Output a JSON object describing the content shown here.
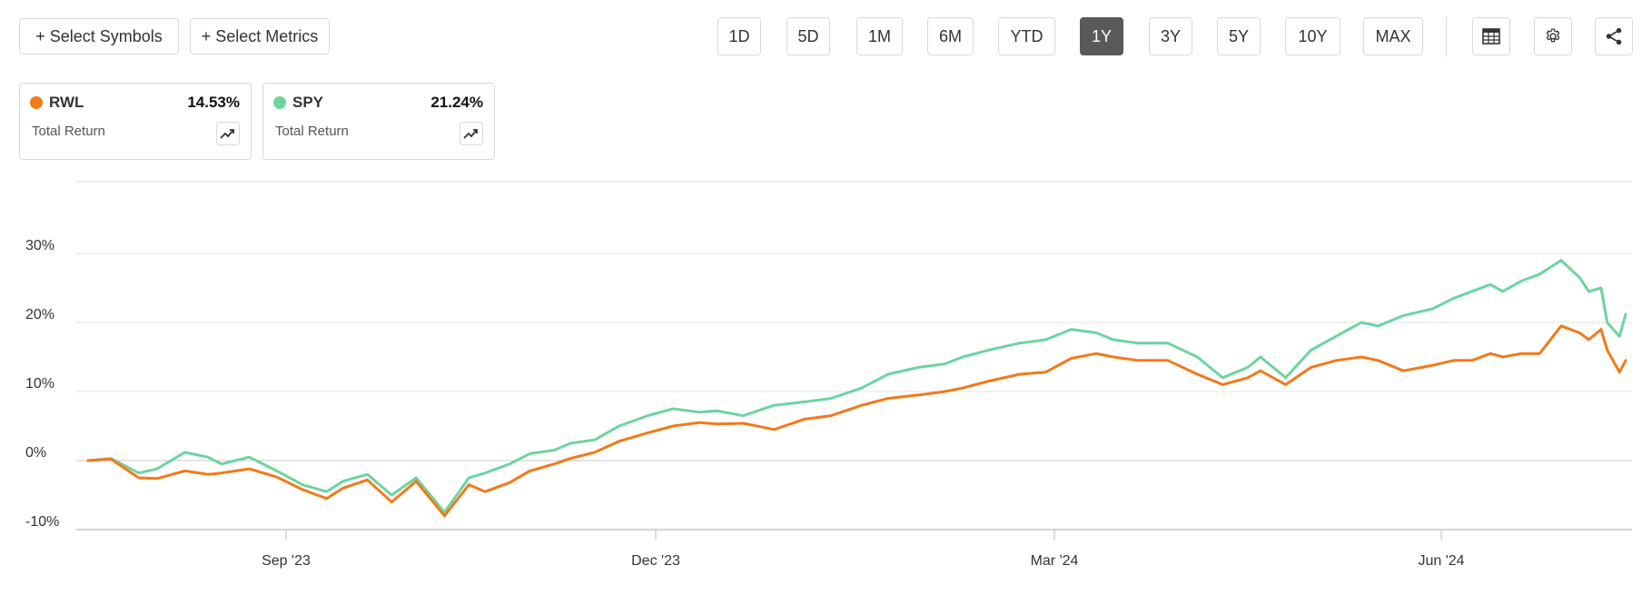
{
  "toolbar": {
    "select_symbols": "+ Select Symbols",
    "select_metrics": "+ Select Metrics",
    "ranges": [
      "1D",
      "5D",
      "1M",
      "6M",
      "YTD",
      "1Y",
      "3Y",
      "5Y",
      "10Y",
      "MAX"
    ],
    "active_range": "1Y",
    "icons": [
      "table-icon",
      "gear-icon",
      "share-icon"
    ]
  },
  "legend": [
    {
      "symbol": "RWL",
      "value": "14.53%",
      "label": "Total Return",
      "color": "#f27a1a"
    },
    {
      "symbol": "SPY",
      "value": "21.24%",
      "label": "Total Return",
      "color": "#6dd4a1"
    }
  ],
  "chart_data": {
    "type": "line",
    "title": "",
    "xlabel": "",
    "ylabel": "",
    "ylim": [
      -10,
      40
    ],
    "yticks": [
      30,
      20,
      10,
      0,
      -10
    ],
    "ytick_labels": [
      "30%",
      "20%",
      "10%",
      "0%",
      "-10%"
    ],
    "xticks": [
      "Sep '23",
      "Dec '23",
      "Mar '24",
      "Jun '24"
    ],
    "xtick_dates": [
      "2023-09-01",
      "2023-12-01",
      "2024-03-01",
      "2024-06-01"
    ],
    "grid": true,
    "series": [
      {
        "name": "RWL",
        "color": "#f27a1a",
        "x": [
          "2023-07-20",
          "2023-07-25",
          "2023-07-31",
          "2023-08-04",
          "2023-08-10",
          "2023-08-15",
          "2023-08-18",
          "2023-08-24",
          "2023-08-30",
          "2023-09-05",
          "2023-09-11",
          "2023-09-15",
          "2023-09-21",
          "2023-09-27",
          "2023-10-03",
          "2023-10-10",
          "2023-10-16",
          "2023-10-20",
          "2023-10-26",
          "2023-10-31",
          "2023-11-06",
          "2023-11-10",
          "2023-11-16",
          "2023-11-22",
          "2023-11-29",
          "2023-12-05",
          "2023-12-11",
          "2023-12-15",
          "2023-12-21",
          "2023-12-28",
          "2024-01-04",
          "2024-01-10",
          "2024-01-17",
          "2024-01-23",
          "2024-01-30",
          "2024-02-05",
          "2024-02-09",
          "2024-02-15",
          "2024-02-22",
          "2024-02-28",
          "2024-03-05",
          "2024-03-11",
          "2024-03-15",
          "2024-03-21",
          "2024-03-28",
          "2024-04-04",
          "2024-04-10",
          "2024-04-16",
          "2024-04-19",
          "2024-04-25",
          "2024-05-01",
          "2024-05-07",
          "2024-05-13",
          "2024-05-17",
          "2024-05-23",
          "2024-05-30",
          "2024-06-05",
          "2024-06-11",
          "2024-06-17",
          "2024-06-21",
          "2024-06-27",
          "2024-07-03",
          "2024-07-10",
          "2024-07-16",
          "2024-07-19",
          "2024-07-23",
          "2024-07-25",
          "2024-07-29",
          "2024-07-31"
        ],
        "values": [
          0.0,
          0.2,
          -2.5,
          -2.6,
          -1.5,
          -2.0,
          -1.8,
          -1.2,
          -2.4,
          -4.2,
          -5.5,
          -4.0,
          -2.8,
          -6.0,
          -3.0,
          -8.0,
          -3.5,
          -4.5,
          -3.2,
          -1.5,
          -0.5,
          0.3,
          1.2,
          2.8,
          4.0,
          5.0,
          5.5,
          5.3,
          5.4,
          4.5,
          6.0,
          6.5,
          8.0,
          9.0,
          9.5,
          10.0,
          10.5,
          11.5,
          12.5,
          12.8,
          14.8,
          15.5,
          15.0,
          14.5,
          14.5,
          12.5,
          11.0,
          12.0,
          13.0,
          11.0,
          13.5,
          14.5,
          15.0,
          14.5,
          13.0,
          13.8,
          14.5,
          14.5,
          15.5,
          15.0,
          15.5,
          15.5,
          19.5,
          18.5,
          17.5,
          19.0,
          16.0,
          12.8,
          14.5
        ]
      },
      {
        "name": "SPY",
        "color": "#6dd4a1",
        "x": [
          "2023-07-20",
          "2023-07-25",
          "2023-07-31",
          "2023-08-04",
          "2023-08-10",
          "2023-08-15",
          "2023-08-18",
          "2023-08-24",
          "2023-08-30",
          "2023-09-05",
          "2023-09-11",
          "2023-09-15",
          "2023-09-21",
          "2023-09-27",
          "2023-10-03",
          "2023-10-10",
          "2023-10-16",
          "2023-10-20",
          "2023-10-26",
          "2023-10-31",
          "2023-11-06",
          "2023-11-10",
          "2023-11-16",
          "2023-11-22",
          "2023-11-29",
          "2023-12-05",
          "2023-12-11",
          "2023-12-15",
          "2023-12-21",
          "2023-12-28",
          "2024-01-04",
          "2024-01-10",
          "2024-01-17",
          "2024-01-23",
          "2024-01-30",
          "2024-02-05",
          "2024-02-09",
          "2024-02-15",
          "2024-02-22",
          "2024-02-28",
          "2024-03-05",
          "2024-03-11",
          "2024-03-15",
          "2024-03-21",
          "2024-03-28",
          "2024-04-04",
          "2024-04-10",
          "2024-04-16",
          "2024-04-19",
          "2024-04-25",
          "2024-05-01",
          "2024-05-07",
          "2024-05-13",
          "2024-05-17",
          "2024-05-23",
          "2024-05-30",
          "2024-06-05",
          "2024-06-11",
          "2024-06-17",
          "2024-06-21",
          "2024-06-27",
          "2024-07-03",
          "2024-07-10",
          "2024-07-16",
          "2024-07-19",
          "2024-07-23",
          "2024-07-25",
          "2024-07-29",
          "2024-07-31"
        ],
        "values": [
          0.0,
          0.3,
          -1.8,
          -1.2,
          1.2,
          0.5,
          -0.5,
          0.5,
          -1.5,
          -3.5,
          -4.5,
          -3.0,
          -2.0,
          -5.0,
          -2.5,
          -7.5,
          -2.5,
          -1.8,
          -0.5,
          1.0,
          1.5,
          2.5,
          3.0,
          5.0,
          6.5,
          7.5,
          7.0,
          7.2,
          6.5,
          8.0,
          8.5,
          9.0,
          10.5,
          12.5,
          13.5,
          14.0,
          15.0,
          16.0,
          17.0,
          17.5,
          19.0,
          18.5,
          17.5,
          17.0,
          17.0,
          15.0,
          12.0,
          13.5,
          15.0,
          12.0,
          16.0,
          18.0,
          20.0,
          19.5,
          21.0,
          22.0,
          23.5,
          24.5,
          25.5,
          24.5,
          26.0,
          27.0,
          29.0,
          26.5,
          24.5,
          25.0,
          20.0,
          18.0,
          21.2
        ]
      }
    ]
  }
}
